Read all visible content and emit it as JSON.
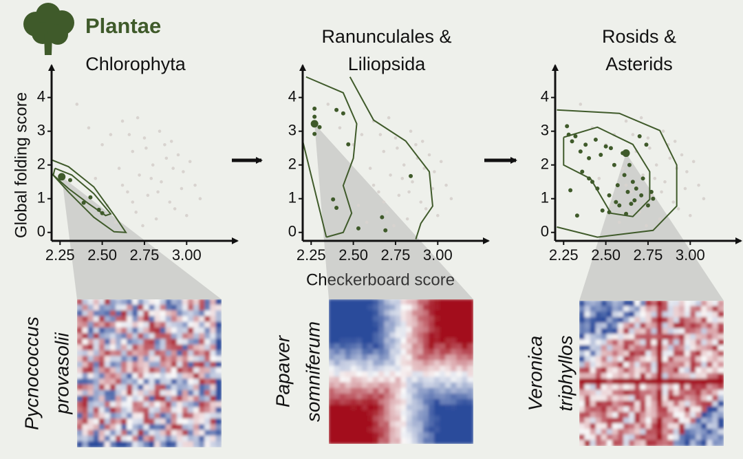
{
  "header": "Plantae",
  "x_axis_label": "Checkerboard score",
  "y_axis_label": "Global folding score",
  "chart_data": [
    {
      "type": "scatter",
      "title": [
        "Chlorophyta"
      ],
      "xlim": [
        2.2,
        3.28
      ],
      "ylim": [
        -0.25,
        4.85
      ],
      "xticks": [
        {
          "value": 2.25,
          "label": "2.25"
        },
        {
          "value": 2.5,
          "label": "2.50"
        },
        {
          "value": 2.75,
          "label": "2.75"
        },
        {
          "value": 3.0,
          "label": "3.00"
        }
      ],
      "yticks": [
        0,
        1,
        2,
        3,
        4
      ],
      "series": [
        {
          "color": "#d8d3cf",
          "x": [
            2.35,
            2.42,
            2.5,
            2.55,
            2.6,
            2.62,
            2.65,
            2.68,
            2.7,
            2.72,
            2.75,
            2.77,
            2.8,
            2.82,
            2.85,
            2.87,
            2.9,
            2.92,
            2.95,
            2.97,
            3.0,
            3.02,
            3.05,
            2.58,
            2.66,
            2.74,
            2.79,
            2.84,
            2.88,
            2.93,
            2.98,
            3.08,
            2.46,
            2.53,
            2.71,
            2.83,
            2.91,
            2.62,
            2.76,
            2.68
          ],
          "y": [
            3.8,
            3.1,
            2.6,
            2.9,
            1.9,
            3.3,
            1.2,
            2.4,
            0.6,
            1.7,
            2.8,
            1.1,
            2.0,
            0.4,
            1.5,
            2.6,
            0.9,
            1.9,
            2.3,
            1.3,
            0.5,
            2.1,
            1.4,
            0.3,
            2.9,
            0.2,
            1.6,
            3.0,
            2.2,
            0.7,
            1.8,
            1.0,
            1.6,
            0.8,
            3.4,
            1.2,
            2.7,
            1.4,
            2.5,
            0.9
          ]
        },
        {
          "color": "#3f5a2a",
          "x": [
            2.31,
            2.43,
            2.39,
            2.48,
            2.5
          ],
          "y": [
            1.55,
            1.04,
            0.88,
            0.67,
            0.57
          ]
        }
      ],
      "highlight": {
        "x": 2.26,
        "y": 1.65
      },
      "contour_color": "#3f5a2a",
      "contours": [
        [
          [
            2.2,
            2.15
          ],
          [
            2.3,
            1.95
          ],
          [
            2.45,
            1.35
          ],
          [
            2.58,
            0.45
          ],
          [
            2.64,
            0.0
          ],
          [
            2.57,
            0.02
          ],
          [
            2.45,
            0.45
          ],
          [
            2.3,
            1.2
          ],
          [
            2.2,
            1.75
          ]
        ],
        [
          [
            2.22,
            1.9
          ],
          [
            2.32,
            1.7
          ],
          [
            2.45,
            1.15
          ],
          [
            2.55,
            0.55
          ],
          [
            2.52,
            0.5
          ],
          [
            2.42,
            0.85
          ],
          [
            2.3,
            1.3
          ],
          [
            2.21,
            1.7
          ],
          [
            2.22,
            1.9
          ]
        ]
      ],
      "species": [
        "Pycnococcus",
        "provasolii"
      ]
    },
    {
      "type": "scatter",
      "title": [
        "Ranunculales &",
        "Liliopsida"
      ],
      "xlim": [
        2.2,
        3.28
      ],
      "ylim": [
        -0.25,
        4.85
      ],
      "xticks": [
        {
          "value": 2.25,
          "label": "2.25"
        },
        {
          "value": 2.5,
          "label": "2.50"
        },
        {
          "value": 2.75,
          "label": "2.75"
        },
        {
          "value": 3.0,
          "label": "3.00"
        }
      ],
      "yticks": [
        0,
        1,
        2,
        3,
        4
      ],
      "series": [
        {
          "color": "#d8d3cf",
          "x": [
            2.35,
            2.42,
            2.5,
            2.55,
            2.6,
            2.62,
            2.65,
            2.68,
            2.7,
            2.72,
            2.75,
            2.77,
            2.8,
            2.82,
            2.85,
            2.87,
            2.9,
            2.92,
            2.95,
            2.97,
            3.0,
            3.02,
            3.05,
            2.58,
            2.66,
            2.74,
            2.79,
            2.84,
            2.88,
            2.93,
            2.98,
            3.08,
            2.46,
            2.53,
            2.71,
            2.83,
            2.91,
            2.62,
            2.76,
            2.68
          ],
          "y": [
            3.8,
            3.1,
            2.6,
            2.9,
            1.9,
            3.3,
            1.2,
            2.4,
            0.6,
            1.7,
            2.8,
            1.1,
            2.0,
            0.4,
            1.5,
            2.6,
            0.9,
            1.9,
            2.3,
            1.3,
            0.5,
            2.1,
            1.4,
            0.3,
            2.9,
            0.2,
            1.6,
            3.0,
            2.2,
            0.7,
            1.8,
            1.0,
            1.6,
            0.8,
            3.4,
            1.2,
            2.7,
            1.4,
            2.5,
            0.9
          ]
        },
        {
          "color": "#3f5a2a",
          "x": [
            2.27,
            2.27,
            2.27,
            2.3,
            2.4,
            2.44,
            2.47,
            2.38,
            2.4,
            2.53,
            2.67,
            2.69,
            2.84
          ],
          "y": [
            3.67,
            3.43,
            2.92,
            3.12,
            3.63,
            3.53,
            2.61,
            0.98,
            0.73,
            0.12,
            0.45,
            0.06,
            1.67
          ]
        }
      ],
      "highlight": {
        "x": 2.27,
        "y": 3.22
      },
      "contour_color": "#3f5a2a",
      "contours": [
        [
          [
            2.22,
            4.61
          ],
          [
            2.44,
            4.14
          ],
          [
            2.52,
            3.22
          ],
          [
            2.5,
            2.2
          ],
          [
            2.44,
            1.39
          ],
          [
            2.49,
            0.57
          ],
          [
            2.44,
            0.0
          ],
          [
            2.34,
            -0.14
          ]
        ],
        [
          [
            2.2,
            2.71
          ],
          [
            2.34,
            -0.14
          ]
        ],
        [
          [
            2.48,
            4.61
          ],
          [
            2.62,
            3.33
          ],
          [
            2.81,
            2.71
          ],
          [
            2.95,
            1.8
          ],
          [
            2.97,
            0.78
          ],
          [
            2.9,
            0.27
          ],
          [
            2.87,
            -0.2
          ]
        ]
      ],
      "species": [
        "Papaver",
        "somniferum"
      ]
    },
    {
      "type": "scatter",
      "title": [
        "Rosids &",
        "Asterids"
      ],
      "xlim": [
        2.2,
        3.28
      ],
      "ylim": [
        -0.25,
        4.85
      ],
      "xticks": [
        {
          "value": 2.25,
          "label": "2.25"
        },
        {
          "value": 2.5,
          "label": "2.50"
        },
        {
          "value": 2.75,
          "label": "2.75"
        },
        {
          "value": 3.0,
          "label": "3.00"
        }
      ],
      "yticks": [
        0,
        1,
        2,
        3,
        4
      ],
      "series": [
        {
          "color": "#d8d3cf",
          "x": [
            2.35,
            2.42,
            2.5,
            2.55,
            2.6,
            2.62,
            2.65,
            2.68,
            2.7,
            2.72,
            2.75,
            2.77,
            2.8,
            2.82,
            2.85,
            2.87,
            2.9,
            2.92,
            2.95,
            2.97,
            3.0,
            3.02,
            3.05,
            2.58,
            2.66,
            2.74,
            2.79,
            2.84,
            2.88,
            2.93,
            2.98,
            3.08,
            2.46,
            2.53,
            2.71,
            2.83,
            2.91,
            2.62,
            2.76,
            2.68
          ],
          "y": [
            3.8,
            3.1,
            2.6,
            2.9,
            1.9,
            3.3,
            1.2,
            2.4,
            0.6,
            1.7,
            2.8,
            1.1,
            2.0,
            0.4,
            1.5,
            2.6,
            0.9,
            1.9,
            2.3,
            1.3,
            0.5,
            2.1,
            1.4,
            0.3,
            2.9,
            0.2,
            1.6,
            3.0,
            2.2,
            0.7,
            1.8,
            1.0,
            1.6,
            0.8,
            3.4,
            1.2,
            2.7,
            1.4,
            2.5,
            0.9
          ]
        },
        {
          "color": "#3f5a2a",
          "x": [
            2.27,
            2.28,
            2.3,
            2.32,
            2.35,
            2.36,
            2.38,
            2.4,
            2.42,
            2.44,
            2.45,
            2.47,
            2.48,
            2.5,
            2.52,
            2.53,
            2.55,
            2.56,
            2.57,
            2.58,
            2.6,
            2.61,
            2.62,
            2.63,
            2.64,
            2.65,
            2.66,
            2.67,
            2.68,
            2.7,
            2.71,
            2.72,
            2.74,
            2.75,
            2.77,
            2.78,
            2.29,
            2.4,
            2.52,
            2.33
          ],
          "y": [
            3.15,
            2.9,
            2.7,
            2.85,
            2.4,
            1.8,
            2.6,
            2.2,
            1.5,
            2.75,
            1.3,
            2.3,
            0.65,
            2.55,
            1.1,
            2.5,
            2.0,
            0.9,
            1.4,
            0.8,
            2.35,
            1.7,
            0.55,
            1.2,
            2.0,
            0.85,
            1.5,
            0.95,
            1.3,
            2.85,
            1.1,
            1.6,
            2.6,
            0.8,
            1.2,
            1.0,
            1.25,
            1.6,
            0.6,
            0.5
          ]
        }
      ],
      "highlight": {
        "x": 2.62,
        "y": 2.35
      },
      "contour_color": "#3f5a2a",
      "contours": [
        [
          [
            2.21,
            3.63
          ],
          [
            2.58,
            3.53
          ],
          [
            2.82,
            3.02
          ],
          [
            2.92,
            2.0
          ],
          [
            2.92,
            0.78
          ],
          [
            2.78,
            0.06
          ],
          [
            2.45,
            -0.14
          ],
          [
            2.21,
            0.16
          ]
        ],
        [
          [
            2.25,
            2.82
          ],
          [
            2.45,
            3.12
          ],
          [
            2.66,
            2.61
          ],
          [
            2.76,
            1.8
          ],
          [
            2.76,
            0.98
          ],
          [
            2.66,
            0.47
          ],
          [
            2.53,
            0.57
          ],
          [
            2.41,
            1.59
          ],
          [
            2.25,
            2.0
          ],
          [
            2.25,
            2.82
          ]
        ]
      ],
      "species": [
        "Veronica",
        "triphyllos"
      ]
    }
  ]
}
